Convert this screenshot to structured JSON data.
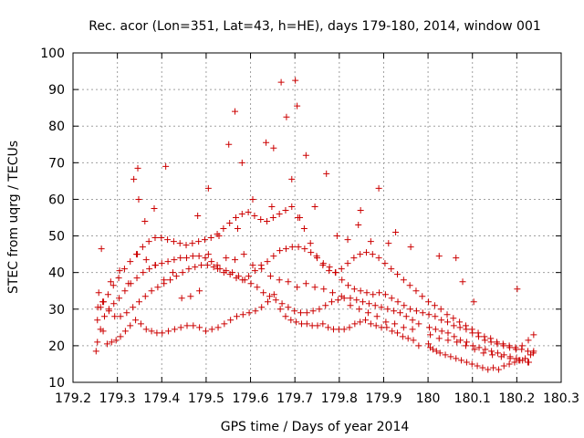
{
  "chart_data": {
    "type": "scatter",
    "title": "Rec. acor (Lon=351, Lat=43, h=HE), days 179-180, 2014, window 001",
    "xlabel": "GPS time / Days of year 2014",
    "ylabel": "STEC from uqrg / TECUs",
    "xlim": [
      179.2,
      180.3
    ],
    "ylim": [
      10,
      100
    ],
    "xticks": [
      179.2,
      179.3,
      179.4,
      179.5,
      179.6,
      179.7,
      179.8,
      179.9,
      180,
      180.1,
      180.2,
      180.3
    ],
    "xtick_labels": [
      "179.2",
      "179.3",
      "179.4",
      "179.5",
      "179.6",
      "179.7",
      "179.8",
      "179.9",
      "180",
      "180.1",
      "180.2",
      "180.3"
    ],
    "yticks": [
      10,
      20,
      30,
      40,
      50,
      60,
      70,
      80,
      90,
      100
    ],
    "ytick_labels": [
      "10",
      "20",
      "30",
      "40",
      "50",
      "60",
      "70",
      "80",
      "90",
      "100"
    ],
    "grid": true,
    "marker_color": "#cc0000",
    "series": [
      {
        "marker": "plus",
        "x": [
          179.252,
          179.255,
          179.262,
          179.268,
          179.277,
          179.287,
          179.297,
          179.307,
          179.318,
          179.329,
          179.341,
          179.353,
          179.365,
          179.377,
          179.389,
          179.401,
          179.415,
          179.429,
          179.443,
          179.457,
          179.471,
          179.485,
          179.499,
          179.513,
          179.527,
          179.541,
          179.555,
          179.569,
          179.583,
          179.597,
          179.611,
          179.625,
          179.639,
          179.653,
          179.667,
          179.679,
          179.691,
          179.703,
          179.715,
          179.727,
          179.739,
          179.751,
          179.763,
          179.775,
          179.787,
          179.799,
          179.811,
          179.823,
          179.835,
          179.847,
          179.859,
          179.871,
          179.883,
          179.895,
          179.907,
          179.919,
          179.931,
          179.943,
          179.955,
          179.967,
          179.979,
          180.001,
          180.005,
          180.011,
          180.019,
          180.027,
          180.039,
          180.051,
          180.063,
          180.075,
          180.087,
          180.099,
          180.111,
          180.123,
          180.135,
          180.147,
          180.159,
          180.171,
          180.183,
          180.195,
          180.207,
          180.219,
          180.231,
          180.238,
          179.255,
          179.262,
          179.271,
          179.281,
          179.292,
          179.304,
          179.317,
          179.33,
          179.344,
          179.358,
          179.372,
          179.386,
          179.4,
          179.414,
          179.428,
          179.442,
          179.456,
          179.47,
          179.484,
          179.498,
          179.512,
          179.526,
          179.54,
          179.554,
          179.568,
          179.582,
          179.596,
          179.61,
          179.624,
          179.638,
          179.652,
          179.666,
          179.68,
          179.694,
          179.708,
          179.722,
          179.736,
          179.75,
          179.764,
          179.778,
          179.792,
          179.806,
          179.82,
          179.834,
          179.848,
          179.862,
          179.876,
          179.89,
          179.904,
          179.918,
          179.932,
          179.946,
          179.96,
          179.974,
          179.988,
          180.002,
          180.016,
          180.03,
          180.044,
          180.058,
          180.072,
          180.086,
          180.1,
          180.114,
          180.128,
          180.142,
          180.156,
          180.17,
          180.184,
          180.198,
          180.212,
          180.226,
          180.238,
          179.256,
          179.267,
          179.279,
          179.291,
          179.303,
          179.316,
          179.329,
          179.343,
          179.357,
          179.371,
          179.385,
          179.399,
          179.413,
          179.427,
          179.441,
          179.455,
          179.469,
          179.483,
          179.497,
          179.511,
          179.525,
          179.539,
          179.553,
          179.567,
          179.581,
          179.595,
          179.609,
          179.623,
          179.637,
          179.651,
          179.665,
          179.679,
          179.693,
          179.707,
          179.721,
          179.735,
          179.749,
          179.763,
          179.777,
          179.791,
          179.805,
          179.819,
          179.833,
          179.847,
          179.861,
          179.875,
          179.889,
          179.903,
          179.917,
          179.931,
          179.945,
          179.959,
          179.973,
          179.987,
          180.001,
          180.015,
          180.029,
          180.043,
          180.057,
          180.071,
          180.085,
          180.099,
          180.113,
          180.127,
          180.141,
          180.155,
          180.169,
          180.183,
          180.197,
          180.211,
          180.225,
          180.237,
          179.258,
          179.269,
          179.281,
          179.294,
          179.307,
          179.321,
          179.335,
          179.349,
          179.363,
          179.377,
          179.391,
          179.405,
          179.419,
          179.433,
          179.447,
          179.461,
          179.475,
          179.489,
          179.503,
          179.517,
          179.531,
          179.545,
          179.559,
          179.573,
          179.587,
          179.601,
          179.615,
          179.629,
          179.643,
          179.657,
          179.671,
          179.685,
          179.699,
          179.713,
          179.727,
          179.741,
          179.755,
          179.769,
          179.783,
          179.797,
          179.811,
          179.825,
          179.839,
          179.853,
          179.867,
          179.881,
          179.895,
          179.909,
          179.923,
          179.937,
          179.951,
          179.965,
          179.979,
          180.003,
          180.017,
          180.031,
          180.045,
          180.059,
          180.073,
          180.087,
          180.101,
          180.115,
          180.129,
          180.143,
          180.157,
          180.171,
          180.185,
          180.199,
          180.213,
          180.227,
          179.264,
          179.285,
          179.305,
          179.325,
          179.345,
          179.365,
          179.385,
          179.405,
          179.425,
          179.445,
          179.465,
          179.485,
          179.505,
          179.525,
          179.545,
          179.565,
          179.585,
          179.605,
          179.625,
          179.645,
          179.665,
          179.685,
          179.705,
          179.725,
          179.745,
          179.765,
          179.785,
          179.805,
          179.825,
          179.845,
          179.865,
          179.885,
          179.905,
          179.925,
          179.945,
          179.965,
          180.005,
          180.025,
          180.045,
          180.065,
          180.085,
          180.105,
          180.125,
          180.145,
          180.165,
          180.185,
          180.205,
          180.225,
          179.337,
          179.346,
          179.348,
          179.362,
          179.383,
          179.409,
          179.481,
          179.505,
          179.529,
          179.551,
          179.565,
          179.571,
          179.581,
          179.605,
          179.635,
          179.648,
          179.652,
          179.669,
          179.681,
          179.693,
          179.701,
          179.705,
          179.711,
          179.725,
          179.745,
          179.771,
          179.795,
          179.819,
          179.843,
          179.848,
          179.871,
          179.889,
          179.911,
          179.927,
          179.961,
          180.025,
          180.063,
          180.078,
          180.103,
          180.201
        ],
        "y": [
          18.5,
          27,
          30.5,
          24,
          20.5,
          21,
          21.5,
          22.5,
          24,
          25.5,
          27,
          26,
          24.5,
          24,
          23.5,
          23.5,
          24,
          24.5,
          25,
          25.5,
          25.5,
          25,
          24,
          24.5,
          25,
          26,
          27,
          28,
          28.5,
          29,
          29.5,
          30.5,
          32,
          34,
          30,
          28,
          27,
          26.5,
          26,
          26,
          25.5,
          25.5,
          26,
          25,
          24.5,
          24.5,
          24.5,
          25,
          26,
          26.5,
          27,
          26,
          25.5,
          25,
          25,
          24,
          23.5,
          22.5,
          22,
          21.5,
          20,
          20.5,
          19.5,
          19,
          18.5,
          18,
          17.5,
          17,
          16.5,
          16,
          15.5,
          15,
          14.5,
          14,
          13.5,
          14,
          13.5,
          14.5,
          15,
          15.5,
          16,
          16.5,
          17.5,
          18.5,
          21,
          24.5,
          28,
          30,
          31.5,
          33,
          35,
          37,
          38.5,
          40,
          41,
          42,
          42.5,
          43,
          43.5,
          44,
          44,
          44.5,
          44.5,
          44,
          43,
          41,
          40,
          39.5,
          38.5,
          38,
          39,
          40.5,
          42,
          43,
          44.5,
          46,
          46.5,
          47,
          47,
          46.5,
          45.5,
          44,
          42.5,
          41.5,
          40,
          38,
          36.5,
          35.5,
          35,
          34.5,
          34,
          34.5,
          34,
          33,
          32,
          31,
          30,
          29.5,
          29,
          28.5,
          28,
          27,
          26.5,
          25.5,
          25,
          24.5,
          23.5,
          22.5,
          21.5,
          21,
          20.5,
          20,
          19.5,
          19,
          20,
          21.5,
          23,
          30.5,
          32,
          34,
          36.5,
          38.5,
          41,
          43,
          45,
          47,
          48.5,
          49.5,
          49.5,
          49,
          48.5,
          48,
          47.5,
          48,
          48.5,
          49,
          49.5,
          50.5,
          52,
          53.5,
          55,
          56,
          56.5,
          55.5,
          54.5,
          54,
          55,
          56,
          57,
          58,
          55,
          52,
          48,
          44.5,
          42,
          40.5,
          40,
          41,
          42.5,
          44,
          45,
          45.5,
          45,
          44,
          42.5,
          41,
          39.5,
          38,
          36.5,
          35,
          33.5,
          32,
          31,
          30,
          28.5,
          27.5,
          26.5,
          25.5,
          24.5,
          23.5,
          22.5,
          22,
          21,
          20.5,
          20,
          19.5,
          19,
          18.5,
          18,
          34.5,
          32,
          29.5,
          28,
          28,
          29,
          30.5,
          32,
          33.5,
          35,
          36,
          37,
          38,
          39,
          40,
          41,
          41.5,
          42,
          42,
          41.5,
          41,
          40.5,
          40,
          39,
          38,
          37,
          36,
          34.5,
          33.5,
          32.5,
          31.5,
          30.5,
          29.5,
          29,
          29,
          29.5,
          30,
          31,
          32,
          32.5,
          33,
          33,
          32.5,
          32,
          31.5,
          31,
          30.5,
          30,
          29.5,
          29,
          28,
          27,
          26,
          25,
          24.5,
          24,
          23.5,
          22.5,
          21.5,
          21,
          20,
          19.5,
          19,
          18.5,
          18,
          17.5,
          17,
          16.5,
          16,
          15.5,
          46.5,
          37.5,
          40.5,
          37,
          45,
          43.5,
          42,
          38,
          40,
          33,
          33.5,
          35,
          45,
          42,
          44,
          43.5,
          45,
          42,
          41,
          39,
          38,
          37.5,
          36,
          37,
          36,
          35.5,
          34.5,
          33.5,
          31,
          30,
          29,
          28,
          26.5,
          26,
          25,
          24.5,
          23,
          22,
          21.5,
          21,
          20,
          19,
          18,
          17.5,
          17,
          16.5,
          16,
          15.5,
          65.5,
          68.5,
          60,
          54,
          57.5,
          69,
          55.5,
          63,
          50,
          75,
          84,
          52,
          70,
          60,
          75.5,
          58,
          74,
          92,
          82.5,
          65.5,
          92.5,
          85.5,
          55,
          72,
          58,
          67,
          50,
          49,
          53,
          57,
          48.5,
          63,
          48,
          51,
          47,
          44.5,
          44,
          37.5,
          32,
          35.5
        ]
      }
    ]
  }
}
